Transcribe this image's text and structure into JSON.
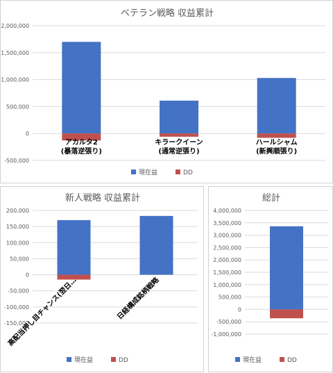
{
  "chart_data": [
    {
      "type": "bar",
      "title": "ベテラン戦略 収益累計",
      "categories": [
        "アカルタ2\n(暴落逆張り)",
        "キラークイーン\n(通常逆張り)",
        "ハールシャム\n(新興順張り)"
      ],
      "series": [
        {
          "name": "現在益",
          "color": "#4472C4",
          "values": [
            1700000,
            610000,
            1030000
          ]
        },
        {
          "name": "DD",
          "color": "#C0504D",
          "values": [
            -130000,
            -60000,
            -80000
          ]
        }
      ],
      "yticks": [
        "2,000,000",
        "1,500,000",
        "1,000,000",
        "500,000",
        "0",
        "-500,000"
      ],
      "ylim": [
        -500000,
        2000000
      ],
      "grid": true,
      "legend": "bottom"
    },
    {
      "type": "bar",
      "title": "新人戦略 収益累計",
      "categories": [
        "高配当押し目チャンス(翌日…",
        "日経構成銘柄戦略"
      ],
      "series": [
        {
          "name": "現在益",
          "color": "#4472C4",
          "values": [
            170000,
            183000
          ]
        },
        {
          "name": "DD",
          "color": "#C0504D",
          "values": [
            -15000,
            0
          ]
        }
      ],
      "yticks": [
        "200,000",
        "150,000",
        "100,000",
        "50,000",
        "0",
        "-50,000",
        "-100,000",
        "-150,000"
      ],
      "ylim": [
        -150000,
        200000
      ],
      "grid": true,
      "legend": "bottom"
    },
    {
      "type": "bar",
      "title": "総計",
      "categories": [
        ""
      ],
      "series": [
        {
          "name": "現在益",
          "color": "#4472C4",
          "values": [
            3360000
          ]
        },
        {
          "name": "DD",
          "color": "#C0504D",
          "values": [
            -360000
          ]
        }
      ],
      "yticks": [
        "4,000,000",
        "3,500,000",
        "3,000,000",
        "2,500,000",
        "2,000,000",
        "1,500,000",
        "1,000,000",
        "500,000",
        "0",
        "-500,000",
        "-1,000,000"
      ],
      "ylim": [
        -1000000,
        4000000
      ],
      "grid": true,
      "legend": "bottom"
    }
  ]
}
